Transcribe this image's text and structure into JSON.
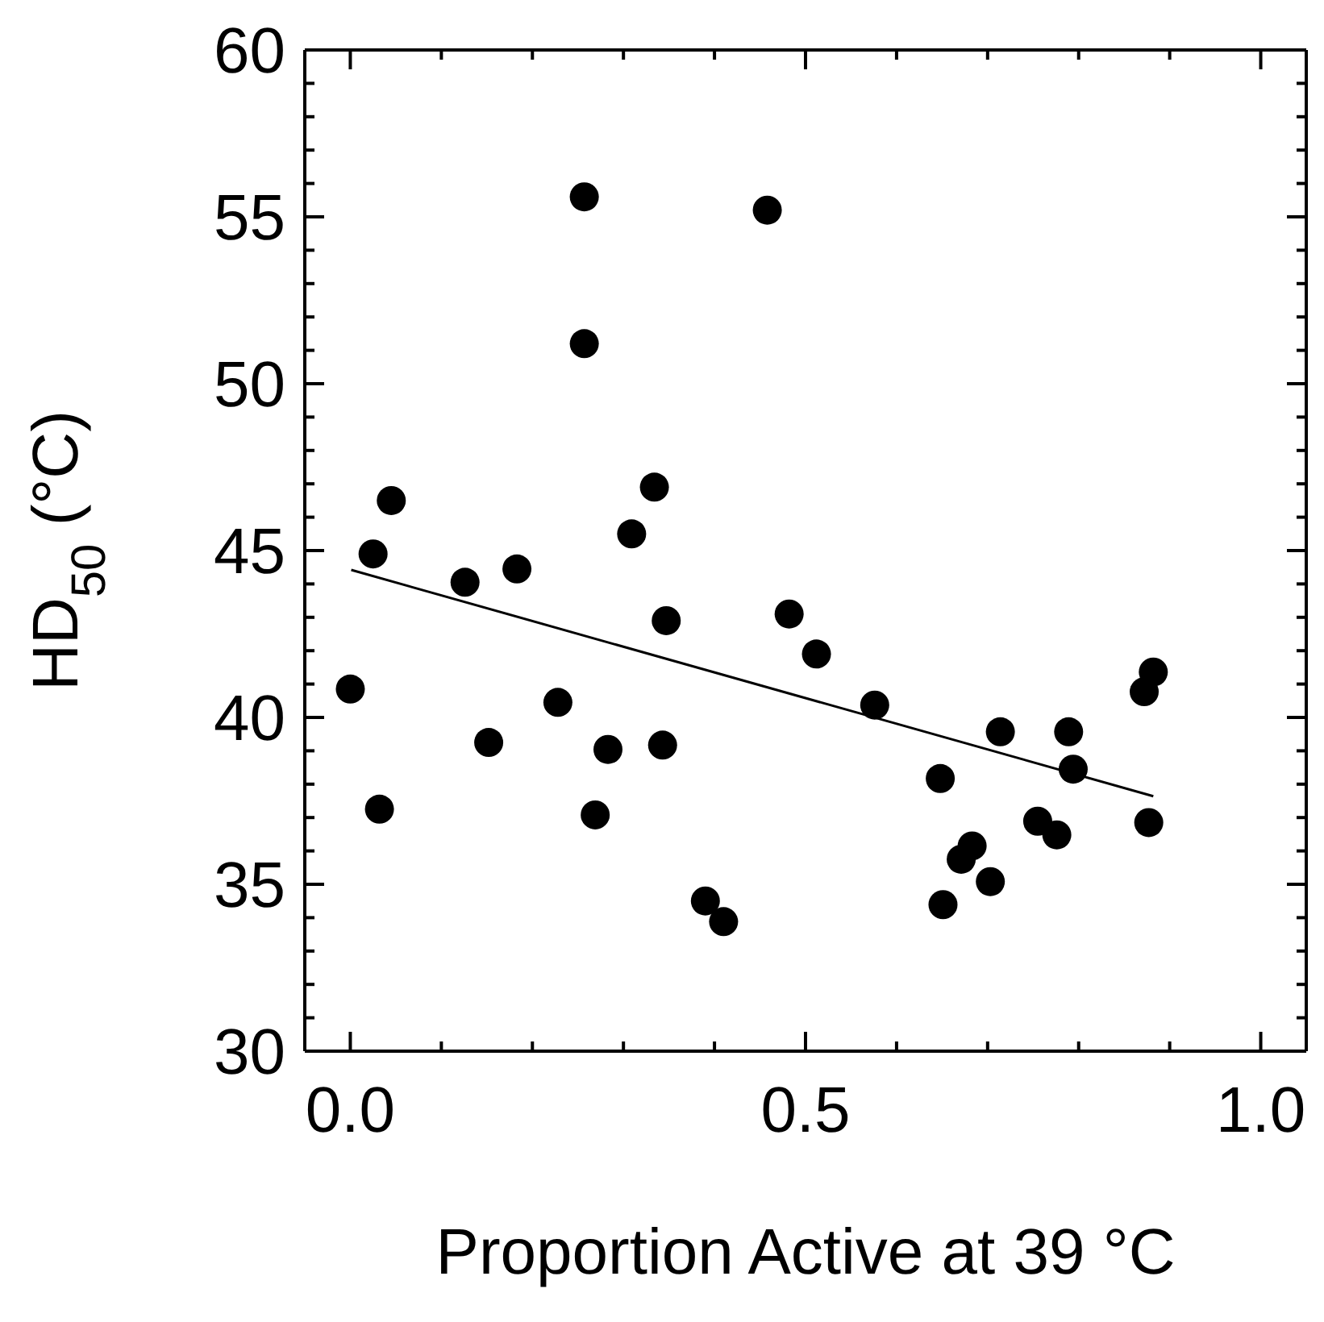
{
  "chart_data": {
    "type": "scatter",
    "xlabel": "Proportion Active at 39 °C",
    "ylabel": "HD$_{50}$ (°C)",
    "xlim": [
      -0.05,
      1.05
    ],
    "ylim": [
      30,
      60
    ],
    "xticks": [
      {
        "value": 0,
        "label": "0.0"
      },
      {
        "value": 0.1,
        "label": null
      },
      {
        "value": 0.2,
        "label": null
      },
      {
        "value": 0.3,
        "label": null
      },
      {
        "value": 0.4,
        "label": null
      },
      {
        "value": 0.5,
        "label": "0.5"
      },
      {
        "value": 0.6,
        "label": null
      },
      {
        "value": 0.7,
        "label": null
      },
      {
        "value": 0.8,
        "label": null
      },
      {
        "value": 0.9,
        "label": null
      },
      {
        "value": 1,
        "label": "1.0"
      }
    ],
    "yticks": [
      30,
      {
        "value": 31,
        "label": null
      },
      {
        "value": 32,
        "label": null
      },
      {
        "value": 33,
        "label": null
      },
      {
        "value": 34,
        "label": null
      },
      35,
      {
        "value": 36,
        "label": null
      },
      {
        "value": 37,
        "label": null
      },
      {
        "value": 38,
        "label": null
      },
      {
        "value": 39,
        "label": null
      },
      40,
      {
        "value": 41,
        "label": null
      },
      {
        "value": 42,
        "label": null
      },
      {
        "value": 43,
        "label": null
      },
      {
        "value": 44,
        "label": null
      },
      45,
      {
        "value": 46,
        "label": null
      },
      {
        "value": 47,
        "label": null
      },
      {
        "value": 48,
        "label": null
      },
      {
        "value": 49,
        "label": null
      },
      50,
      {
        "value": 51,
        "label": null
      },
      {
        "value": 52,
        "label": null
      },
      {
        "value": 53,
        "label": null
      },
      {
        "value": 54,
        "label": null
      },
      55,
      {
        "value": 56,
        "label": null
      },
      {
        "value": 57,
        "label": null
      },
      {
        "value": 58,
        "label": null
      },
      {
        "value": 59,
        "label": null
      },
      60
    ],
    "grid": false,
    "legend": false,
    "marker": "circle",
    "series": [
      {
        "color": "#000000",
        "x": [
          0.257,
          0.458,
          0.257,
          0.045,
          0.334,
          0.309,
          0.025,
          0.126,
          0.183,
          0.347,
          0.482,
          0.512,
          0.0,
          0.228,
          0.152,
          0.283,
          0.343,
          0.032,
          0.269,
          0.39,
          0.41,
          0.576,
          0.648,
          0.714,
          0.789,
          0.794,
          0.882,
          0.872,
          0.755,
          0.776,
          0.877,
          0.683,
          0.671,
          0.703,
          0.651
        ],
        "values": [
          55.6,
          55.2,
          51.2,
          46.5,
          46.9,
          45.5,
          44.9,
          44.05,
          44.45,
          42.9,
          43.1,
          41.9,
          40.85,
          40.45,
          39.25,
          39.04,
          39.17,
          37.25,
          37.08,
          34.5,
          33.88,
          40.37,
          38.17,
          39.57,
          39.57,
          38.45,
          41.36,
          40.77,
          36.89,
          36.48,
          36.85,
          36.15,
          35.75,
          35.08,
          34.39
        ]
      },
      {
        "type": "line",
        "color": "#000000",
        "marker": "none",
        "line_style": "solid",
        "x": [
          0.001,
          0.882
        ],
        "values": [
          44.42,
          37.64
        ]
      }
    ]
  }
}
